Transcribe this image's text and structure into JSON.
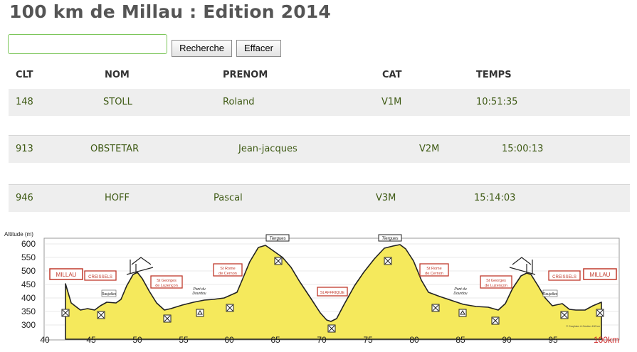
{
  "page": {
    "title": "100 km de Millau : Edition 2014"
  },
  "search": {
    "value": "",
    "placeholder": ""
  },
  "buttons": {
    "search_label": "Recherche",
    "clear_label": "Effacer"
  },
  "table": {
    "headers": [
      "CLT",
      "NOM",
      "PRENOM",
      "CAT",
      "TEMPS"
    ],
    "rows": [
      [
        "148",
        "STOLL",
        "Roland",
        "V1M",
        "10:51:35"
      ],
      [
        "913",
        "OBSTETAR",
        "Jean-jacques",
        "V2M",
        "15:00:13"
      ],
      [
        "946",
        "HOFF",
        "Pascal",
        "V3M",
        "15:14:03"
      ]
    ]
  },
  "profile": {
    "ylabel": "Altitude (m)",
    "y_ticks": [
      "600",
      "550",
      "500",
      "450",
      "400",
      "350",
      "300"
    ],
    "x_ticks": [
      "40",
      "45",
      "50",
      "55",
      "60",
      "65",
      "70",
      "75",
      "80",
      "85",
      "90",
      "95"
    ],
    "x_end_label": "100km",
    "places": {
      "millau": "MILLAU",
      "creissels": "CREISSELS",
      "raujolles": "Raujolles",
      "st_georges": [
        "St Georges",
        "de Luzençon"
      ],
      "pont_dourdou": [
        "Pont du",
        "Dourdou"
      ],
      "st_rome": [
        "St Rome",
        "de Cernon"
      ],
      "tiergues": "Tiergues",
      "st_affrique": "St AFFRIQUE"
    },
    "copyright": "© Graphism & Gestion 100 km",
    "colors": {
      "fill": "#f5e95c",
      "place_box": "#c0392b",
      "x_end": "#cc2222"
    }
  }
}
